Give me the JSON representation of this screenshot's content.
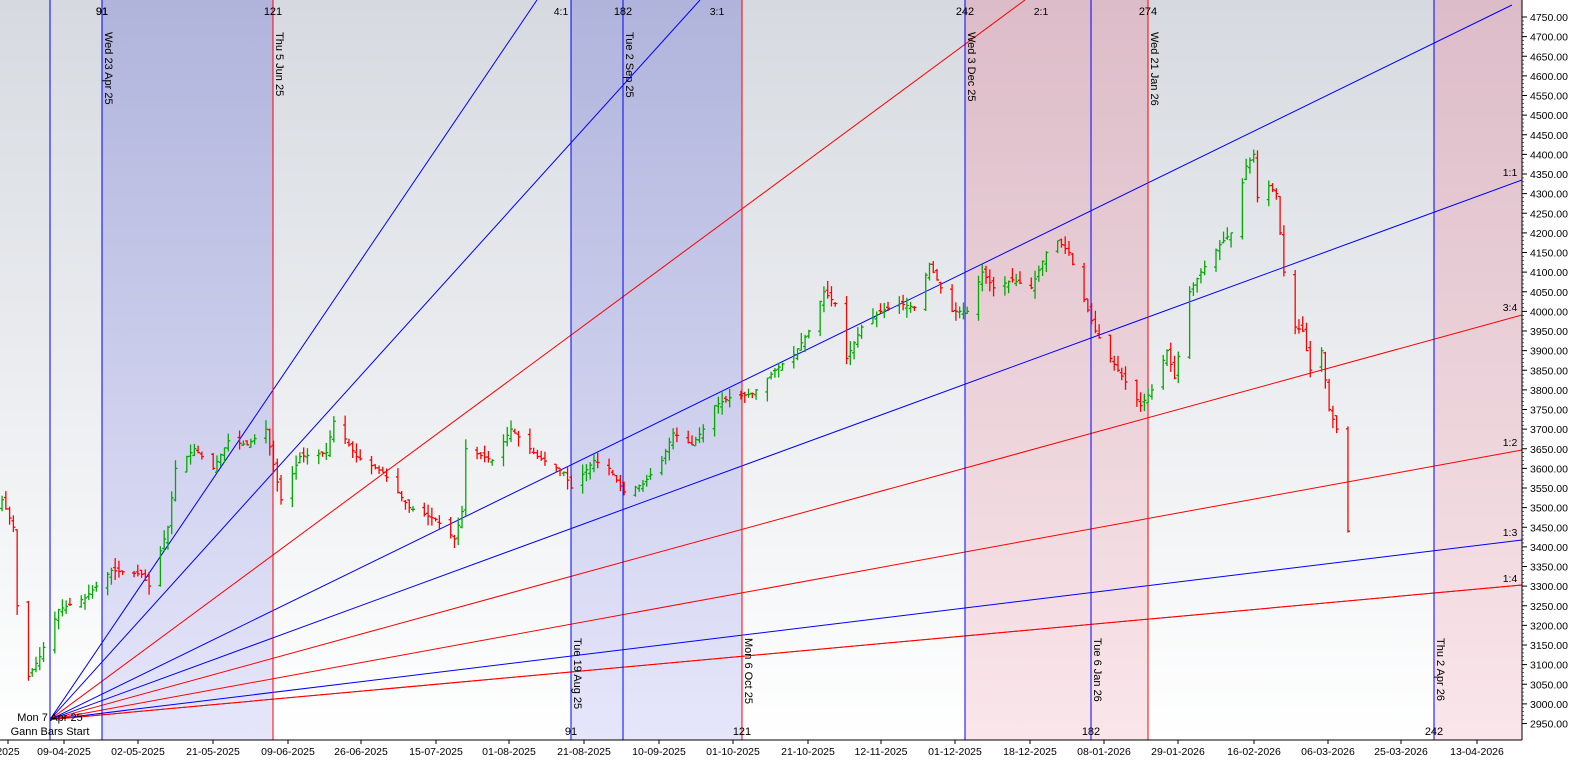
{
  "chart_data": {
    "type": "ohlc",
    "price_scale": {
      "min": 2950,
      "max": 4750,
      "step": 50,
      "label_suffix": ".00"
    },
    "x_tick_labels": [
      "2025",
      "09-04-2025",
      "02-05-2025",
      "21-05-2025",
      "09-06-2025",
      "26-06-2025",
      "15-07-2025",
      "01-08-2025",
      "21-08-2025",
      "10-09-2025",
      "01-10-2025",
      "21-10-2025",
      "12-11-2025",
      "01-12-2025",
      "18-12-2025",
      "08-01-2026",
      "29-01-2026",
      "16-02-2026",
      "06-03-2026",
      "25-03-2026",
      "13-04-2026"
    ],
    "gann": {
      "start_label_top": "Mon 7 Apr 25",
      "start_label_bottom": "Gann Bars Start",
      "fan_labels": [
        "4:1",
        "3:1",
        "2:1",
        "1:1",
        "3:4",
        "1:2",
        "1:3",
        "1:4"
      ],
      "time_lines": [
        {
          "date_label": "Wed 23 Apr 25",
          "count_label": "91",
          "count_pos": "top",
          "color": "#0000ff",
          "label_pos": "top"
        },
        {
          "date_label": "Thu 5 Jun 25",
          "count_label": "121",
          "count_pos": "top",
          "color": "#ff0000",
          "label_pos": "top"
        },
        {
          "date_label": "Tue 19 Aug 25",
          "count_label": "91",
          "count_pos": "bottom",
          "color": "#0000ff",
          "label_pos": "bottom"
        },
        {
          "date_label": "Tue 2 Sep 25",
          "count_label": "182",
          "count_pos": "top",
          "color": "#0000ff",
          "label_pos": "top"
        },
        {
          "date_label": "Mon 6 Oct 25",
          "count_label": "121",
          "count_pos": "bottom",
          "color": "#ff0000",
          "label_pos": "bottom"
        },
        {
          "date_label": "Wed 3 Dec 25",
          "count_label": "242",
          "count_pos": "top",
          "color": "#0000ff",
          "label_pos": "top"
        },
        {
          "date_label": "Tue 6 Jan 26",
          "count_label": "182",
          "count_pos": "bottom",
          "color": "#0000ff",
          "label_pos": "bottom"
        },
        {
          "date_label": "Wed 21 Jan 26",
          "count_label": "274",
          "count_pos": "top",
          "color": "#ff0000",
          "label_pos": "top"
        },
        {
          "date_label": "Thu 2 Apr 26",
          "count_label": "242",
          "count_pos": "bottom",
          "color": "#0000ff",
          "label_pos": "bottom"
        }
      ]
    },
    "colors": {
      "up": "#00aa00",
      "down": "#ff0000",
      "blue_line": "#0000ff",
      "red_line": "#ff0000"
    },
    "ohlc_keypoints": [
      [
        "2025-03-26",
        3480
      ],
      [
        "2025-03-31",
        3520
      ],
      [
        "2025-04-03",
        3450
      ],
      [
        "2025-04-04",
        3250
      ],
      [
        "2025-04-07",
        3070
      ],
      [
        "2025-04-10",
        3120
      ],
      [
        "2025-04-15",
        3240
      ],
      [
        "2025-04-22",
        3270
      ],
      [
        "2025-04-29",
        3340
      ],
      [
        "2025-05-07",
        3330
      ],
      [
        "2025-05-09",
        3300
      ],
      [
        "2025-05-14",
        3450
      ],
      [
        "2025-05-16",
        3600
      ],
      [
        "2025-05-21",
        3650
      ],
      [
        "2025-05-26",
        3600
      ],
      [
        "2025-05-30",
        3670
      ],
      [
        "2025-06-04",
        3660
      ],
      [
        "2025-06-09",
        3700
      ],
      [
        "2025-06-13",
        3520
      ],
      [
        "2025-06-18",
        3630
      ],
      [
        "2025-06-25",
        3640
      ],
      [
        "2025-06-27",
        3720
      ],
      [
        "2025-07-03",
        3630
      ],
      [
        "2025-07-10",
        3590
      ],
      [
        "2025-07-17",
        3500
      ],
      [
        "2025-07-24",
        3470
      ],
      [
        "2025-07-29",
        3420
      ],
      [
        "2025-07-31",
        3490
      ],
      [
        "2025-08-01",
        3650
      ],
      [
        "2025-08-08",
        3620
      ],
      [
        "2025-08-13",
        3700
      ],
      [
        "2025-08-20",
        3630
      ],
      [
        "2025-08-27",
        3590
      ],
      [
        "2025-08-29",
        3550
      ],
      [
        "2025-09-04",
        3620
      ],
      [
        "2025-09-08",
        3600
      ],
      [
        "2025-09-12",
        3540
      ],
      [
        "2025-09-17",
        3560
      ],
      [
        "2025-09-22",
        3620
      ],
      [
        "2025-09-25",
        3690
      ],
      [
        "2025-09-30",
        3660
      ],
      [
        "2025-10-03",
        3700
      ],
      [
        "2025-10-06",
        3760
      ],
      [
        "2025-10-10",
        3780
      ],
      [
        "2025-10-16",
        3790
      ],
      [
        "2025-10-22",
        3850
      ],
      [
        "2025-10-27",
        3890
      ],
      [
        "2025-10-31",
        3950
      ],
      [
        "2025-11-04",
        4050
      ],
      [
        "2025-11-07",
        4020
      ],
      [
        "2025-11-10",
        3880
      ],
      [
        "2025-11-14",
        3960
      ],
      [
        "2025-11-19",
        4000
      ],
      [
        "2025-11-24",
        4020
      ],
      [
        "2025-11-28",
        4010
      ],
      [
        "2025-12-02",
        4120
      ],
      [
        "2025-12-04",
        4080
      ],
      [
        "2025-12-08",
        4000
      ],
      [
        "2025-12-12",
        4000
      ],
      [
        "2025-12-16",
        4100
      ],
      [
        "2025-12-19",
        4060
      ],
      [
        "2025-12-24",
        4080
      ],
      [
        "2025-12-29",
        4060
      ],
      [
        "2026-01-02",
        4150
      ],
      [
        "2026-01-05",
        4180
      ],
      [
        "2026-01-08",
        4150
      ],
      [
        "2026-01-12",
        4030
      ],
      [
        "2026-01-15",
        3950
      ],
      [
        "2026-01-19",
        3880
      ],
      [
        "2026-01-23",
        3820
      ],
      [
        "2026-01-27",
        3760
      ],
      [
        "2026-01-30",
        3800
      ],
      [
        "2026-02-03",
        3900
      ],
      [
        "2026-02-05",
        3830
      ],
      [
        "2026-02-09",
        4050
      ],
      [
        "2026-02-12",
        4100
      ],
      [
        "2026-02-17",
        4170
      ],
      [
        "2026-02-20",
        4200
      ],
      [
        "2026-02-24",
        4370
      ],
      [
        "2026-02-26",
        4400
      ],
      [
        "2026-02-27",
        4290
      ],
      [
        "2026-03-02",
        4320
      ],
      [
        "2026-03-04",
        4300
      ],
      [
        "2026-03-06",
        4100
      ],
      [
        "2026-03-09",
        3960
      ],
      [
        "2026-03-11",
        3950
      ],
      [
        "2026-03-13",
        3850
      ],
      [
        "2026-03-16",
        3900
      ],
      [
        "2026-03-18",
        3750
      ],
      [
        "2026-03-20",
        3700
      ],
      [
        "2026-03-23",
        3440
      ]
    ]
  }
}
